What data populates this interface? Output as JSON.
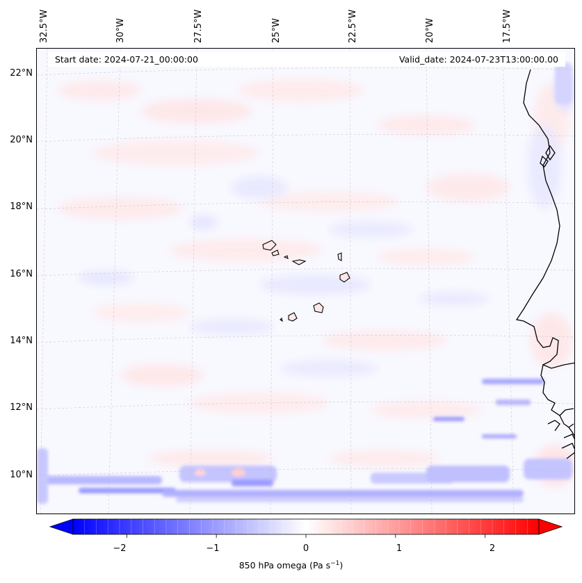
{
  "map": {
    "lon_labels": [
      "32.5°W",
      "30°W",
      "27.5°W",
      "25°W",
      "22.5°W",
      "20°W",
      "17.5°W"
    ],
    "lat_labels": [
      "22°N",
      "20°N",
      "18°N",
      "16°N",
      "14°N",
      "12°N",
      "10°N"
    ],
    "start_date": "Start date: 2024-07-21_00:00:00",
    "valid_date": "Valid_date: 2024-07-23T13:00:00.00"
  },
  "colorbar": {
    "ticks": [
      "−2",
      "−1",
      "0",
      "1",
      "2"
    ],
    "title": "850 hPa omega (Pa s",
    "title_sup": "−1",
    "title_end": ")",
    "range": [
      -2.6,
      2.6
    ],
    "color_min": "#0000ff",
    "color_mid": "#ffffff",
    "color_max": "#ff0000"
  }
}
